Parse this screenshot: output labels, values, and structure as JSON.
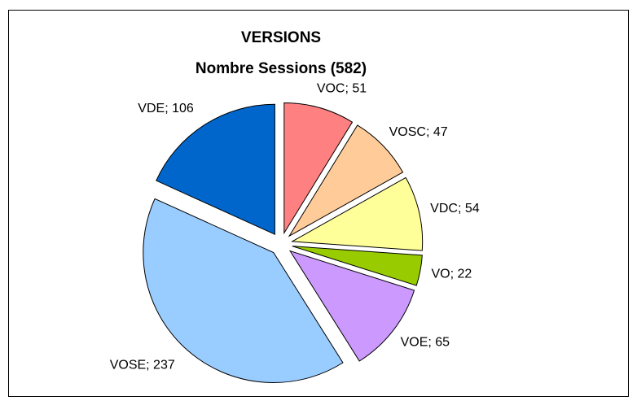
{
  "chart_data": {
    "type": "pie",
    "title": "VERSIONS",
    "subtitle": "Nombre Sessions (582)",
    "categories": [
      "VOC",
      "VOSC",
      "VDC",
      "VO",
      "VOE",
      "VOSE",
      "VDE"
    ],
    "values": [
      51,
      47,
      54,
      22,
      65,
      237,
      106
    ],
    "value_labels": [
      "VOC; 51",
      "VOSC; 47",
      "VDC; 54",
      "VO; 22",
      "VOE; 65",
      "VOSE; 237",
      "VDE; 106"
    ],
    "colors": [
      "#ff8080",
      "#ffcc99",
      "#ffff99",
      "#99cc00",
      "#cc99ff",
      "#99ccff",
      "#0066cc"
    ],
    "exploded": true
  }
}
